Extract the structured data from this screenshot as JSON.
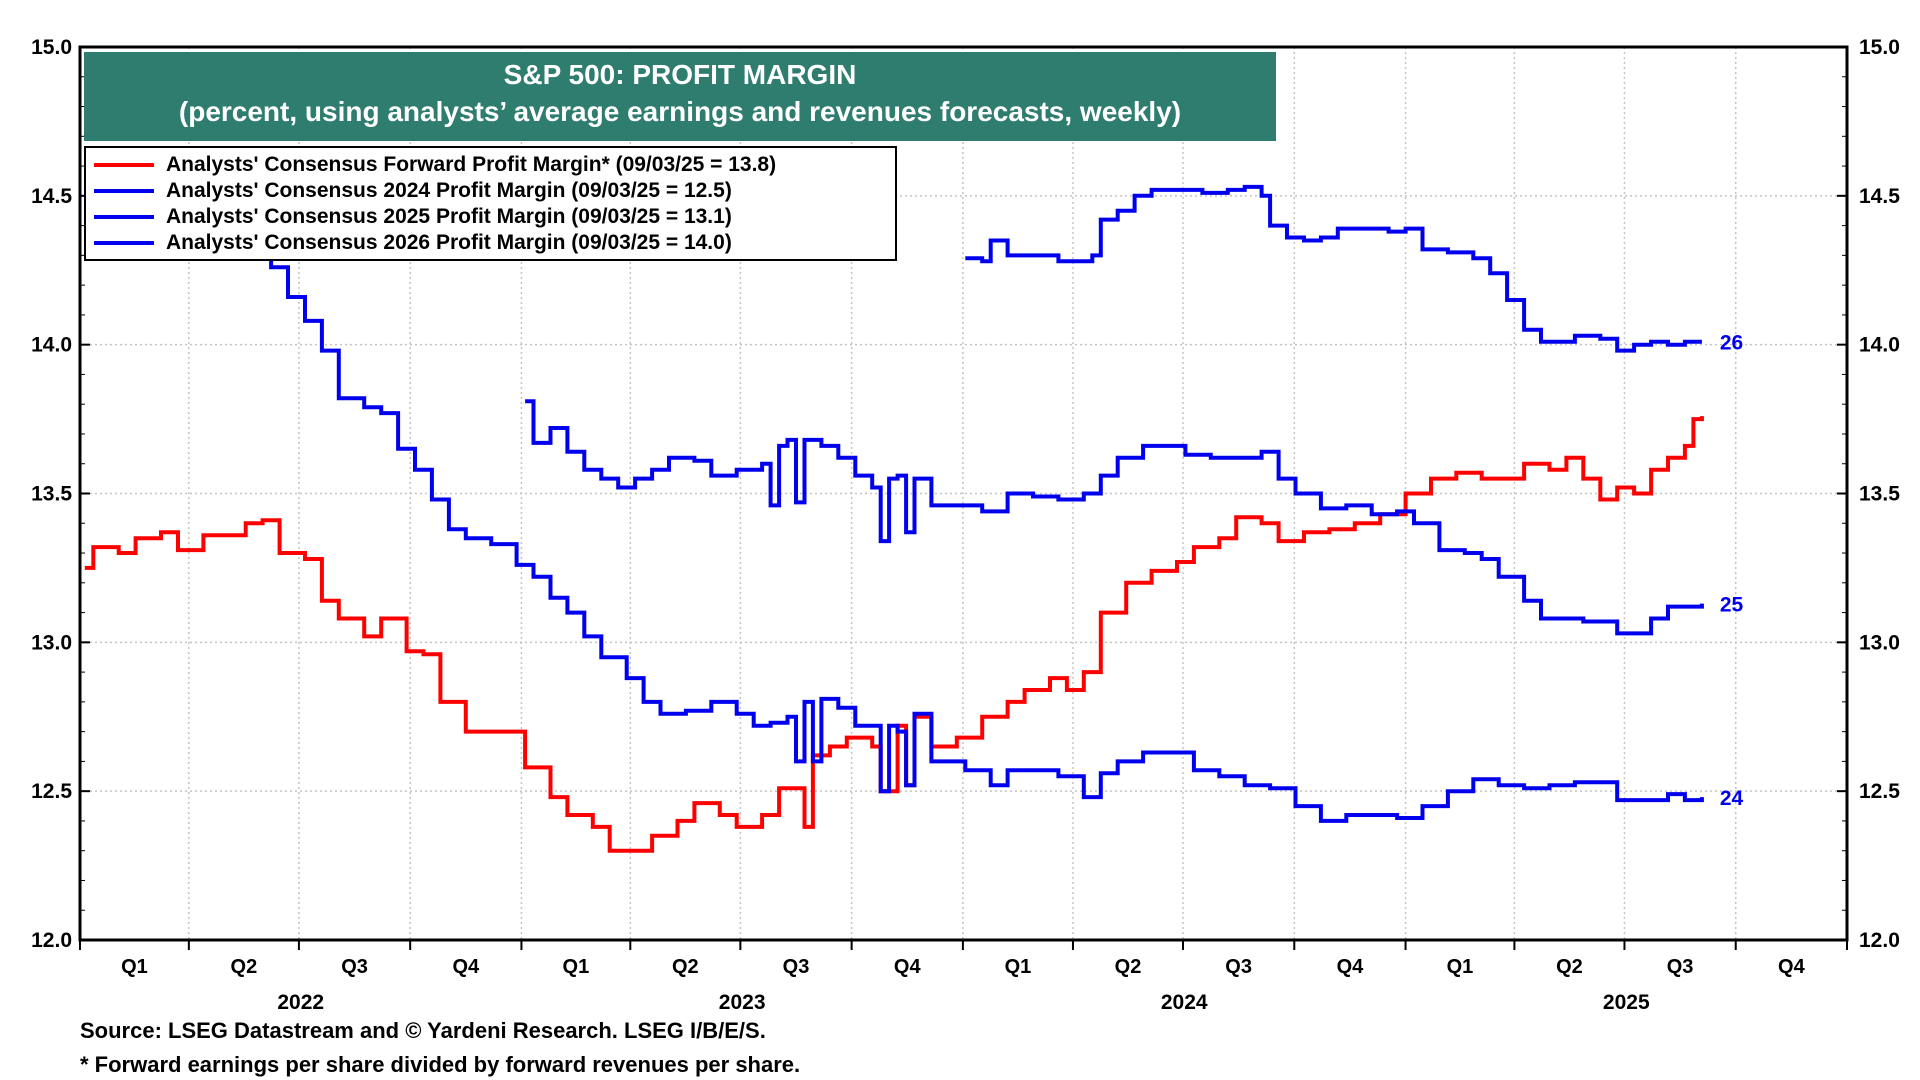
{
  "chart_data": {
    "type": "line",
    "title": "S&P 500: PROFIT MARGIN",
    "subtitle": "(percent, using analysts’ average earnings and revenues forecasts, weekly)",
    "ylim": [
      12.0,
      15.0
    ],
    "y_ticks": [
      "12.0",
      "12.5",
      "13.0",
      "13.5",
      "14.0",
      "14.5",
      "15.0"
    ],
    "x_range": [
      "2022-01-01",
      "2025-12-31"
    ],
    "quarter_labels": [
      "Q1",
      "Q2",
      "Q3",
      "Q4",
      "Q1",
      "Q2",
      "Q3",
      "Q4",
      "Q1",
      "Q2",
      "Q3",
      "Q4",
      "Q1",
      "Q2",
      "Q3",
      "Q4"
    ],
    "year_labels": [
      "2022",
      "2023",
      "2024",
      "2025"
    ],
    "grid": true,
    "legend_position": "top-left",
    "series": [
      {
        "name": "Analysts' Consensus Forward Profit Margin* (09/03/25 = 13.8)",
        "color": "#ff0000",
        "points": [
          [
            "2022-01-05",
            13.25
          ],
          [
            "2022-01-12",
            13.32
          ],
          [
            "2022-02-02",
            13.3
          ],
          [
            "2022-02-16",
            13.35
          ],
          [
            "2022-03-09",
            13.37
          ],
          [
            "2022-03-23",
            13.31
          ],
          [
            "2022-04-13",
            13.36
          ],
          [
            "2022-05-04",
            13.36
          ],
          [
            "2022-05-18",
            13.4
          ],
          [
            "2022-06-01",
            13.41
          ],
          [
            "2022-06-15",
            13.3
          ],
          [
            "2022-07-06",
            13.28
          ],
          [
            "2022-07-20",
            13.14
          ],
          [
            "2022-08-03",
            13.08
          ],
          [
            "2022-08-24",
            13.02
          ],
          [
            "2022-09-07",
            13.08
          ],
          [
            "2022-09-28",
            12.97
          ],
          [
            "2022-10-12",
            12.96
          ],
          [
            "2022-10-26",
            12.8
          ],
          [
            "2022-11-16",
            12.7
          ],
          [
            "2022-12-07",
            12.7
          ],
          [
            "2022-12-21",
            12.7
          ],
          [
            "2023-01-04",
            12.58
          ],
          [
            "2023-01-25",
            12.48
          ],
          [
            "2023-02-08",
            12.42
          ],
          [
            "2023-03-01",
            12.38
          ],
          [
            "2023-03-15",
            12.3
          ],
          [
            "2023-04-05",
            12.3
          ],
          [
            "2023-04-19",
            12.35
          ],
          [
            "2023-05-10",
            12.4
          ],
          [
            "2023-05-24",
            12.46
          ],
          [
            "2023-06-14",
            12.42
          ],
          [
            "2023-06-28",
            12.38
          ],
          [
            "2023-07-19",
            12.42
          ],
          [
            "2023-08-02",
            12.51
          ],
          [
            "2023-08-23",
            12.38
          ],
          [
            "2023-08-30",
            12.62
          ],
          [
            "2023-09-13",
            12.65
          ],
          [
            "2023-09-27",
            12.68
          ],
          [
            "2023-10-18",
            12.65
          ],
          [
            "2023-10-25",
            12.5
          ],
          [
            "2023-11-08",
            12.72
          ],
          [
            "2023-11-15",
            12.52
          ],
          [
            "2023-11-22",
            12.75
          ],
          [
            "2023-12-06",
            12.65
          ],
          [
            "2023-12-27",
            12.68
          ],
          [
            "2024-01-17",
            12.75
          ],
          [
            "2024-02-07",
            12.8
          ],
          [
            "2024-02-21",
            12.84
          ],
          [
            "2024-03-13",
            12.88
          ],
          [
            "2024-03-27",
            12.84
          ],
          [
            "2024-04-10",
            12.9
          ],
          [
            "2024-04-24",
            13.1
          ],
          [
            "2024-05-15",
            13.2
          ],
          [
            "2024-06-05",
            13.24
          ],
          [
            "2024-06-26",
            13.27
          ],
          [
            "2024-07-10",
            13.32
          ],
          [
            "2024-07-31",
            13.35
          ],
          [
            "2024-08-14",
            13.42
          ],
          [
            "2024-09-04",
            13.4
          ],
          [
            "2024-09-18",
            13.34
          ],
          [
            "2024-10-09",
            13.37
          ],
          [
            "2024-10-30",
            13.38
          ],
          [
            "2024-11-20",
            13.4
          ],
          [
            "2024-12-11",
            13.43
          ],
          [
            "2025-01-01",
            13.5
          ],
          [
            "2025-01-22",
            13.55
          ],
          [
            "2025-02-12",
            13.57
          ],
          [
            "2025-03-05",
            13.55
          ],
          [
            "2025-03-26",
            13.55
          ],
          [
            "2025-04-09",
            13.6
          ],
          [
            "2025-04-30",
            13.58
          ],
          [
            "2025-05-14",
            13.62
          ],
          [
            "2025-05-28",
            13.55
          ],
          [
            "2025-06-11",
            13.48
          ],
          [
            "2025-06-25",
            13.52
          ],
          [
            "2025-07-09",
            13.5
          ],
          [
            "2025-07-23",
            13.58
          ],
          [
            "2025-08-06",
            13.62
          ],
          [
            "2025-08-20",
            13.66
          ],
          [
            "2025-08-27",
            13.75
          ],
          [
            "2025-09-03",
            13.76
          ]
        ]
      },
      {
        "name": "Analysts' Consensus 2024 Profit Margin (09/03/25 = 12.5)",
        "color": "#0000ee",
        "end_label": "24",
        "points": [
          [
            "2022-06-01",
            14.3
          ],
          [
            "2022-06-08",
            14.26
          ],
          [
            "2022-06-22",
            14.16
          ],
          [
            "2022-07-06",
            14.08
          ],
          [
            "2022-07-20",
            13.98
          ],
          [
            "2022-08-03",
            13.82
          ],
          [
            "2022-08-24",
            13.79
          ],
          [
            "2022-09-07",
            13.77
          ],
          [
            "2022-09-21",
            13.65
          ],
          [
            "2022-10-05",
            13.58
          ],
          [
            "2022-10-19",
            13.48
          ],
          [
            "2022-11-02",
            13.38
          ],
          [
            "2022-11-16",
            13.35
          ],
          [
            "2022-12-07",
            13.33
          ],
          [
            "2022-12-28",
            13.26
          ],
          [
            "2023-01-11",
            13.22
          ],
          [
            "2023-01-25",
            13.15
          ],
          [
            "2023-02-08",
            13.1
          ],
          [
            "2023-02-22",
            13.02
          ],
          [
            "2023-03-08",
            12.95
          ],
          [
            "2023-03-29",
            12.88
          ],
          [
            "2023-04-12",
            12.8
          ],
          [
            "2023-04-26",
            12.76
          ],
          [
            "2023-05-17",
            12.77
          ],
          [
            "2023-06-07",
            12.8
          ],
          [
            "2023-06-28",
            12.76
          ],
          [
            "2023-07-12",
            12.72
          ],
          [
            "2023-07-26",
            12.73
          ],
          [
            "2023-08-09",
            12.75
          ],
          [
            "2023-08-16",
            12.6
          ],
          [
            "2023-08-23",
            12.8
          ],
          [
            "2023-08-30",
            12.6
          ],
          [
            "2023-09-06",
            12.81
          ],
          [
            "2023-09-20",
            12.78
          ],
          [
            "2023-10-04",
            12.72
          ],
          [
            "2023-10-25",
            12.5
          ],
          [
            "2023-11-01",
            12.72
          ],
          [
            "2023-11-08",
            12.7
          ],
          [
            "2023-11-15",
            12.52
          ],
          [
            "2023-11-22",
            12.76
          ],
          [
            "2023-12-06",
            12.6
          ],
          [
            "2024-01-03",
            12.57
          ],
          [
            "2024-01-24",
            12.52
          ],
          [
            "2024-02-07",
            12.57
          ],
          [
            "2024-02-28",
            12.57
          ],
          [
            "2024-03-20",
            12.55
          ],
          [
            "2024-04-10",
            12.48
          ],
          [
            "2024-04-24",
            12.56
          ],
          [
            "2024-05-08",
            12.6
          ],
          [
            "2024-05-29",
            12.63
          ],
          [
            "2024-06-19",
            12.63
          ],
          [
            "2024-07-10",
            12.57
          ],
          [
            "2024-07-31",
            12.55
          ],
          [
            "2024-08-21",
            12.52
          ],
          [
            "2024-09-11",
            12.51
          ],
          [
            "2024-10-02",
            12.45
          ],
          [
            "2024-10-23",
            12.4
          ],
          [
            "2024-11-13",
            12.42
          ],
          [
            "2024-12-04",
            12.42
          ],
          [
            "2024-12-25",
            12.41
          ],
          [
            "2025-01-15",
            12.45
          ],
          [
            "2025-02-05",
            12.5
          ],
          [
            "2025-02-26",
            12.54
          ],
          [
            "2025-03-19",
            12.52
          ],
          [
            "2025-04-09",
            12.51
          ],
          [
            "2025-04-30",
            12.52
          ],
          [
            "2025-05-21",
            12.53
          ],
          [
            "2025-06-11",
            12.53
          ],
          [
            "2025-06-25",
            12.47
          ],
          [
            "2025-07-16",
            12.47
          ],
          [
            "2025-08-06",
            12.49
          ],
          [
            "2025-08-20",
            12.47
          ],
          [
            "2025-09-03",
            12.48
          ]
        ]
      },
      {
        "name": "Analysts' Consensus 2025 Profit Margin (09/03/25 = 13.1)",
        "color": "#0000ee",
        "end_label": "25",
        "points": [
          [
            "2023-01-04",
            13.81
          ],
          [
            "2023-01-11",
            13.67
          ],
          [
            "2023-01-25",
            13.72
          ],
          [
            "2023-02-08",
            13.64
          ],
          [
            "2023-02-22",
            13.58
          ],
          [
            "2023-03-08",
            13.55
          ],
          [
            "2023-03-22",
            13.52
          ],
          [
            "2023-04-05",
            13.55
          ],
          [
            "2023-04-19",
            13.58
          ],
          [
            "2023-05-03",
            13.62
          ],
          [
            "2023-05-24",
            13.61
          ],
          [
            "2023-06-07",
            13.56
          ],
          [
            "2023-06-28",
            13.58
          ],
          [
            "2023-07-19",
            13.6
          ],
          [
            "2023-07-26",
            13.46
          ],
          [
            "2023-08-02",
            13.66
          ],
          [
            "2023-08-09",
            13.68
          ],
          [
            "2023-08-16",
            13.47
          ],
          [
            "2023-08-23",
            13.68
          ],
          [
            "2023-09-06",
            13.66
          ],
          [
            "2023-09-20",
            13.62
          ],
          [
            "2023-10-04",
            13.56
          ],
          [
            "2023-10-18",
            13.52
          ],
          [
            "2023-10-25",
            13.34
          ],
          [
            "2023-11-01",
            13.55
          ],
          [
            "2023-11-08",
            13.56
          ],
          [
            "2023-11-15",
            13.37
          ],
          [
            "2023-11-22",
            13.55
          ],
          [
            "2023-12-06",
            13.46
          ],
          [
            "2023-12-27",
            13.46
          ],
          [
            "2024-01-17",
            13.44
          ],
          [
            "2024-02-07",
            13.5
          ],
          [
            "2024-02-28",
            13.49
          ],
          [
            "2024-03-20",
            13.48
          ],
          [
            "2024-04-10",
            13.5
          ],
          [
            "2024-04-24",
            13.56
          ],
          [
            "2024-05-08",
            13.62
          ],
          [
            "2024-05-29",
            13.66
          ],
          [
            "2024-06-12",
            13.66
          ],
          [
            "2024-07-03",
            13.63
          ],
          [
            "2024-07-24",
            13.62
          ],
          [
            "2024-08-14",
            13.62
          ],
          [
            "2024-09-04",
            13.64
          ],
          [
            "2024-09-18",
            13.55
          ],
          [
            "2024-10-02",
            13.5
          ],
          [
            "2024-10-23",
            13.45
          ],
          [
            "2024-11-13",
            13.46
          ],
          [
            "2024-12-04",
            13.43
          ],
          [
            "2024-12-25",
            13.44
          ],
          [
            "2025-01-08",
            13.4
          ],
          [
            "2025-01-29",
            13.31
          ],
          [
            "2025-02-19",
            13.3
          ],
          [
            "2025-03-05",
            13.28
          ],
          [
            "2025-03-19",
            13.22
          ],
          [
            "2025-04-09",
            13.14
          ],
          [
            "2025-04-23",
            13.08
          ],
          [
            "2025-05-07",
            13.08
          ],
          [
            "2025-05-28",
            13.07
          ],
          [
            "2025-06-11",
            13.07
          ],
          [
            "2025-06-25",
            13.03
          ],
          [
            "2025-07-09",
            13.03
          ],
          [
            "2025-07-23",
            13.08
          ],
          [
            "2025-08-06",
            13.12
          ],
          [
            "2025-08-20",
            13.12
          ],
          [
            "2025-09-03",
            13.13
          ]
        ]
      },
      {
        "name": "Analysts' Consensus 2026 Profit Margin (09/03/25 = 14.0)",
        "color": "#0000ee",
        "end_label": "26",
        "points": [
          [
            "2024-01-03",
            14.29
          ],
          [
            "2024-01-17",
            14.28
          ],
          [
            "2024-01-24",
            14.35
          ],
          [
            "2024-02-07",
            14.3
          ],
          [
            "2024-02-28",
            14.3
          ],
          [
            "2024-03-20",
            14.28
          ],
          [
            "2024-04-03",
            14.28
          ],
          [
            "2024-04-17",
            14.3
          ],
          [
            "2024-04-24",
            14.42
          ],
          [
            "2024-05-08",
            14.45
          ],
          [
            "2024-05-22",
            14.5
          ],
          [
            "2024-06-05",
            14.52
          ],
          [
            "2024-06-26",
            14.52
          ],
          [
            "2024-07-17",
            14.51
          ],
          [
            "2024-08-07",
            14.52
          ],
          [
            "2024-08-21",
            14.53
          ],
          [
            "2024-09-04",
            14.5
          ],
          [
            "2024-09-11",
            14.4
          ],
          [
            "2024-09-25",
            14.36
          ],
          [
            "2024-10-09",
            14.35
          ],
          [
            "2024-10-23",
            14.36
          ],
          [
            "2024-11-06",
            14.39
          ],
          [
            "2024-11-27",
            14.39
          ],
          [
            "2024-12-18",
            14.38
          ],
          [
            "2025-01-01",
            14.39
          ],
          [
            "2025-01-15",
            14.32
          ],
          [
            "2025-02-05",
            14.31
          ],
          [
            "2025-02-26",
            14.29
          ],
          [
            "2025-03-12",
            14.24
          ],
          [
            "2025-03-26",
            14.15
          ],
          [
            "2025-04-09",
            14.05
          ],
          [
            "2025-04-23",
            14.01
          ],
          [
            "2025-05-07",
            14.01
          ],
          [
            "2025-05-21",
            14.03
          ],
          [
            "2025-06-11",
            14.02
          ],
          [
            "2025-06-25",
            13.98
          ],
          [
            "2025-07-09",
            14.0
          ],
          [
            "2025-07-23",
            14.01
          ],
          [
            "2025-08-06",
            14.0
          ],
          [
            "2025-08-20",
            14.01
          ],
          [
            "2025-09-03",
            14.01
          ]
        ]
      }
    ]
  },
  "footer": {
    "source": "Source: LSEG Datastream and © Yardeni Research. LSEG I/B/E/S.",
    "note": "* Forward earnings per share divided by forward revenues per share."
  }
}
